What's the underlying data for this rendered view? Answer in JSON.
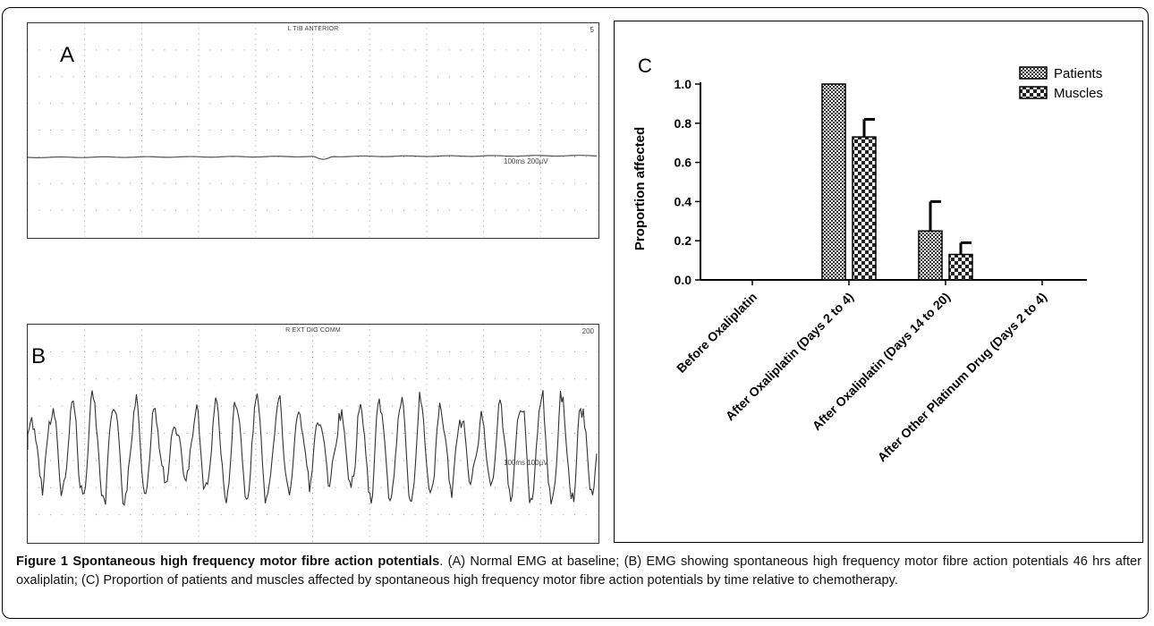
{
  "panel_a": {
    "letter": "A",
    "title": "L TIB ANTERIOR",
    "gain": "5",
    "scale": "100ms 200µV"
  },
  "panel_b": {
    "letter": "B",
    "title": "R EXT DIG COMM",
    "gain": "200",
    "scale": "100ms 100µV"
  },
  "chart_data": {
    "type": "bar",
    "panel_letter": "C",
    "ylabel": "Proportion affected",
    "xlabel": "",
    "title": "",
    "ylim": [
      0,
      1.0
    ],
    "yticks": [
      "0.0",
      "0.2",
      "0.4",
      "0.6",
      "0.8",
      "1.0"
    ],
    "categories": [
      "Before Oxaliplatin",
      "After Oxaliplatin (Days 2 to 4)",
      "After Oxaliplatin (Days 14 to 20)",
      "After Other Platinum Drug (Days 2 to 4)"
    ],
    "series": [
      {
        "name": "Patients",
        "values": [
          0,
          1.0,
          0.25,
          0
        ],
        "errors": [
          0,
          0,
          0.15,
          0
        ],
        "pattern": "fine-check"
      },
      {
        "name": "Muscles",
        "values": [
          0,
          0.73,
          0.13,
          0
        ],
        "errors": [
          0,
          0.09,
          0.06,
          0
        ],
        "pattern": "coarse-check"
      }
    ],
    "legend_position": "top-right",
    "grid": false
  },
  "caption": {
    "title": "Figure 1 Spontaneous high frequency motor fibre action potentials",
    "text": ". (A) Normal EMG at baseline; (B) EMG showing spontaneous high frequency motor fibre action potentials 46 hrs after oxaliplatin; (C) Proportion of patients and muscles affected by spontaneous high frequency motor fibre action potentials by time relative to chemotherapy."
  }
}
